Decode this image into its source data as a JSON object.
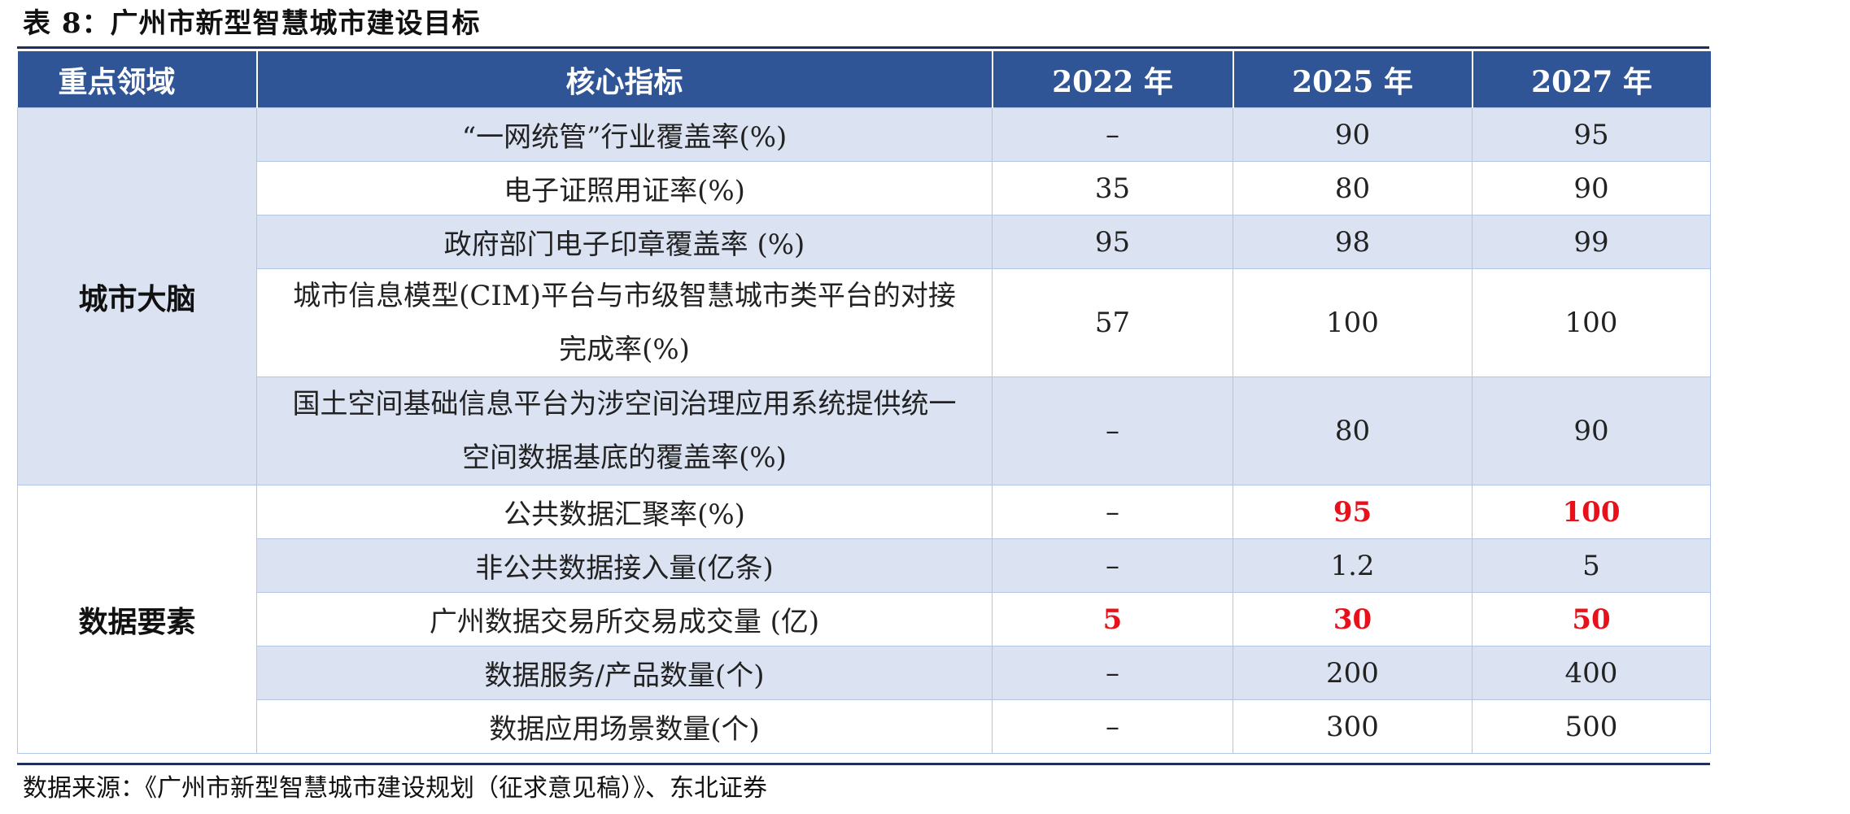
{
  "title": "表 8：广州市新型智慧城市建设目标",
  "headers": {
    "area": "重点领域",
    "indicator": "核心指标",
    "y2022": "2022 年",
    "y2025": "2025 年",
    "y2027": "2027 年"
  },
  "groups": [
    {
      "area": "城市大脑"
    },
    {
      "area": "数据要素"
    }
  ],
  "rows": [
    {
      "indicator": "“一网统管”行业覆盖率(%)",
      "y2022": "–",
      "y2025": "90",
      "y2027": "95"
    },
    {
      "indicator": "电子证照用证率(%)",
      "y2022": "35",
      "y2025": "80",
      "y2027": "90"
    },
    {
      "indicator": "政府部门电子印章覆盖率 (%)",
      "y2022": "95",
      "y2025": "98",
      "y2027": "99"
    },
    {
      "indicator": "城市信息模型(CIM)平台与市级智慧城市类平台的对接完成率(%)",
      "y2022": "57",
      "y2025": "100",
      "y2027": "100"
    },
    {
      "indicator": "国土空间基础信息平台为涉空间治理应用系统提供统一空间数据基底的覆盖率(%)",
      "y2022": "–",
      "y2025": "80",
      "y2027": "90"
    },
    {
      "indicator": "公共数据汇聚率(%)",
      "y2022": "–",
      "y2025": "95",
      "y2027": "100"
    },
    {
      "indicator": "非公共数据接入量(亿条)",
      "y2022": "–",
      "y2025": "1.2",
      "y2027": "5"
    },
    {
      "indicator": "广州数据交易所交易成交量 (亿)",
      "y2022": "5",
      "y2025": "30",
      "y2027": "50"
    },
    {
      "indicator": "数据服务/产品数量(个)",
      "y2022": "–",
      "y2025": "200",
      "y2027": "400"
    },
    {
      "indicator": "数据应用场景数量(个)",
      "y2022": "–",
      "y2025": "300",
      "y2027": "500"
    }
  ],
  "highlight_color": "#e8101a",
  "header_color": "#2f5597",
  "band_color": "#dbe3f3",
  "source": "数据来源：《广州市新型智慧城市建设规划（征求意见稿）》、东北证券"
}
